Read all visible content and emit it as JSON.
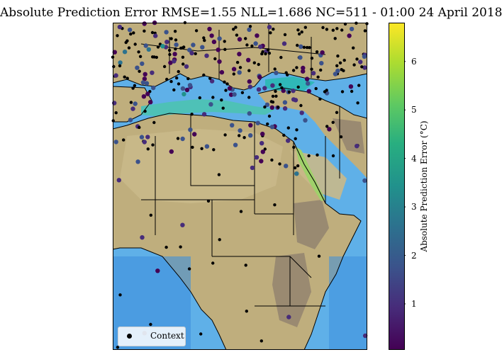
{
  "title": "Absolute Prediction Error RMSE=1.55 NLL=1.686 NC=511 - 01:00 24 April 2018",
  "colorbar": {
    "label": "Absolute Prediction Error (°C)",
    "ticks": [
      "1",
      "2",
      "3",
      "4",
      "5",
      "6"
    ],
    "tick_values": [
      1,
      2,
      3,
      4,
      5,
      6
    ],
    "range": [
      0.05,
      6.8
    ],
    "colormap": "viridis"
  },
  "legend": {
    "entry": "Context",
    "marker_color": "#000000",
    "placement": "lower-left"
  },
  "chart_data": {
    "type": "scatter",
    "region": "Europe, North Africa and Middle East",
    "background_field": "terrain and ocean shading",
    "metric": {
      "RMSE": 1.55,
      "NLL": 1.686,
      "NC": 511
    },
    "timestamp": "01:00 24 April 2018",
    "series": [
      {
        "legend": "Context",
        "color": "#000000"
      }
    ]
  }
}
